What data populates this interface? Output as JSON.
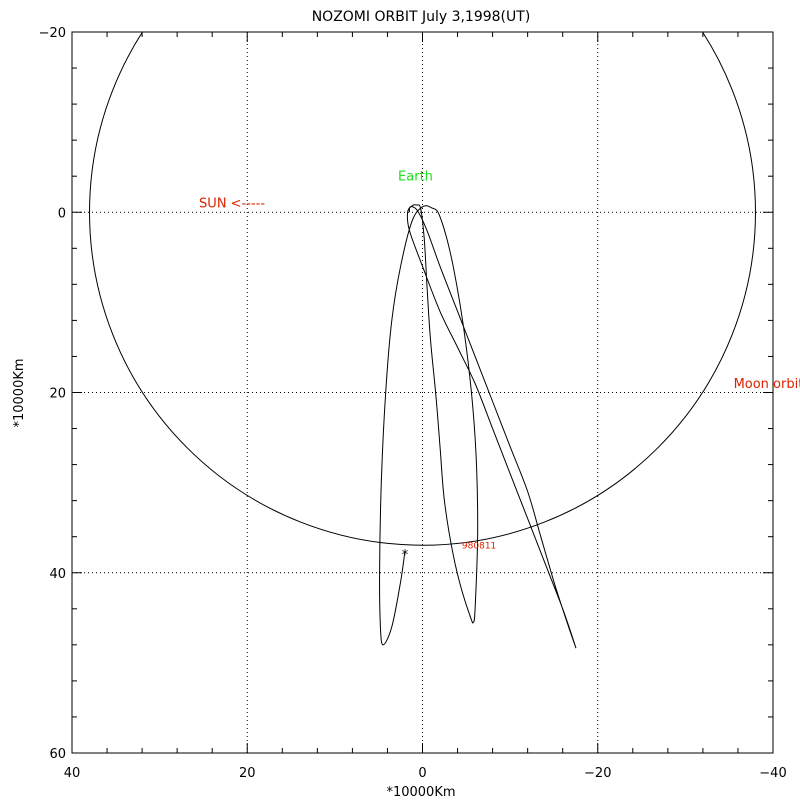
{
  "chart_data": {
    "type": "line",
    "title": "NOZOMI ORBIT July 3,1998(UT)",
    "xlabel": "*10000Km",
    "ylabel": "*10000Km",
    "xlim": [
      40,
      -40
    ],
    "ylim": [
      -20,
      60
    ],
    "x_ticks": [
      40,
      20,
      0,
      -20,
      -40
    ],
    "y_ticks": [
      -20,
      0,
      20,
      40,
      60
    ],
    "x_tick_labels": [
      "40",
      "20",
      "0",
      "−20",
      "−40"
    ],
    "y_tick_labels": [
      "−20",
      "0",
      "20",
      "40",
      "60"
    ],
    "grid": "dotted at 20-unit steps",
    "colors": {
      "text": "#000000",
      "sun": "#dd2200",
      "moon": "#dd2200",
      "earth": "#22dd22",
      "date": "#dd2200"
    },
    "moon_orbit": {
      "center": [
        0,
        0
      ],
      "radius": 38
    },
    "annotations": {
      "sun": {
        "text": "SUN <-----",
        "x": 25.5,
        "y": -0.5
      },
      "earth": {
        "text": "Earth",
        "x": 0.8,
        "y": -3.5
      },
      "moon": {
        "text": "Moon orbit",
        "x": -35.5,
        "y": 19.5
      },
      "date": {
        "text": "980811",
        "x": -4.5,
        "y": 37.3
      }
    },
    "current_position": {
      "x": 2,
      "y": 37.6
    },
    "series": [
      {
        "x": [
          2,
          2.5,
          3.5,
          4.5,
          4.8,
          4.9,
          4.7,
          4.2,
          3.5,
          2.5,
          1.2,
          0,
          -1,
          -2,
          -3.5,
          -5,
          -6,
          -6.3,
          -6,
          -5.8,
          -5.5,
          -4.5,
          -3.5,
          -2.5,
          -2,
          -1.5,
          -0.9,
          -0.5,
          -0.2,
          0.2,
          0.7,
          1.2,
          1.7,
          1.5,
          0,
          -2,
          -4,
          -6,
          -8,
          -10,
          -12,
          -14,
          -16,
          -17.5,
          -16.5,
          -15,
          -13.5,
          -12,
          -10,
          -8,
          -6,
          -4,
          -2,
          -0.5,
          0.6,
          1.4,
          1.5
        ],
        "y": [
          37.6,
          41,
          46,
          48,
          46,
          40,
          30,
          20,
          12,
          6,
          1,
          -0.6,
          -0.5,
          0.5,
          6,
          15,
          25,
          35,
          44,
          45.5,
          45,
          42,
          38,
          32,
          26,
          20,
          14,
          8,
          3,
          -0.4,
          -0.8,
          -0.7,
          0,
          2,
          6,
          11,
          15,
          19,
          24,
          29,
          34,
          39,
          44,
          48.3,
          45.5,
          41,
          36,
          31,
          26,
          21,
          16,
          11,
          6,
          2,
          -0.2,
          -0.6,
          0
        ]
      }
    ]
  }
}
